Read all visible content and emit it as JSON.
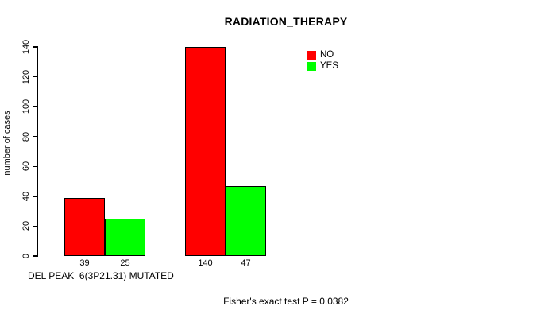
{
  "chart_data": {
    "type": "bar",
    "title": "RADIATION_THERAPY",
    "ylabel": "number of cases",
    "xlabel": "DEL PEAK  6(3P21.31) MUTATED",
    "annotation": "Fisher's exact test P = 0.0382",
    "ylim": [
      0,
      140
    ],
    "yticks": [
      0,
      20,
      40,
      60,
      80,
      100,
      120,
      140
    ],
    "grid": false,
    "legend_position": "top-right",
    "series": [
      {
        "name": "NO",
        "color": "#ff0000",
        "values": [
          39,
          140
        ]
      },
      {
        "name": "YES",
        "color": "#00ff00",
        "values": [
          25,
          47
        ]
      }
    ],
    "bar_value_labels": [
      [
        39,
        25
      ],
      [
        140,
        47
      ]
    ],
    "axis_color": "#000000",
    "background_color": "#ffffff"
  }
}
